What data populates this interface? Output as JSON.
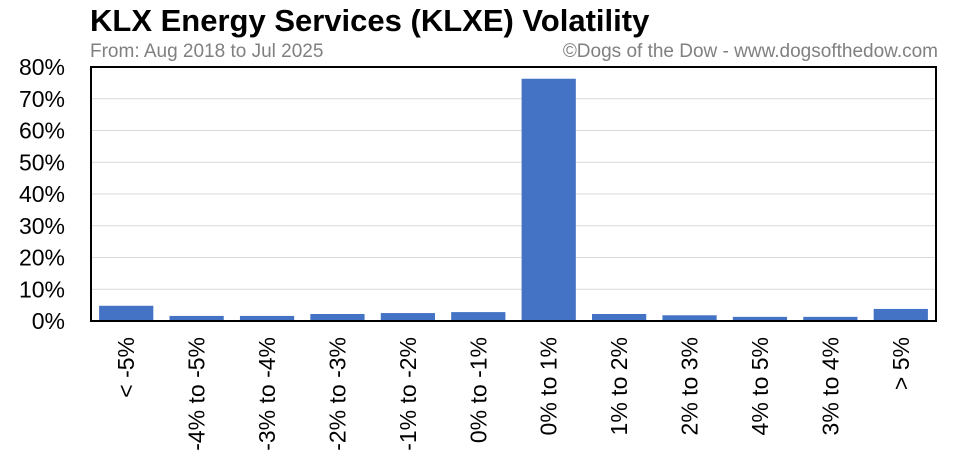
{
  "chart_data": {
    "type": "bar",
    "title": "KLX Energy Services (KLXE) Volatility",
    "subtitle": "From: Aug 2018 to Jul 2025",
    "credit": "©Dogs of the Dow - www.dogsofthedow.com",
    "categories": [
      "< -5%",
      "-4% to -5%",
      "-3% to -4%",
      "-2% to -3%",
      "-1% to -2%",
      "0% to -1%",
      "0% to 1%",
      "1% to 2%",
      "2% to 3%",
      "4% to 5%",
      "3% to 4%",
      "> 5%"
    ],
    "values": [
      4.8,
      1.6,
      1.6,
      2.2,
      2.5,
      2.8,
      76.3,
      2.2,
      1.8,
      1.3,
      1.3,
      3.8
    ],
    "ylim": [
      0,
      80
    ],
    "yticks": [
      0,
      10,
      20,
      30,
      40,
      50,
      60,
      70,
      80
    ],
    "ytick_labels": [
      "0%",
      "10%",
      "20%",
      "30%",
      "40%",
      "50%",
      "60%",
      "70%",
      "80%"
    ],
    "xlabel": "",
    "ylabel": "",
    "grid": true,
    "bar_color": "#4472C4",
    "grid_color": "#D9D9D9"
  }
}
